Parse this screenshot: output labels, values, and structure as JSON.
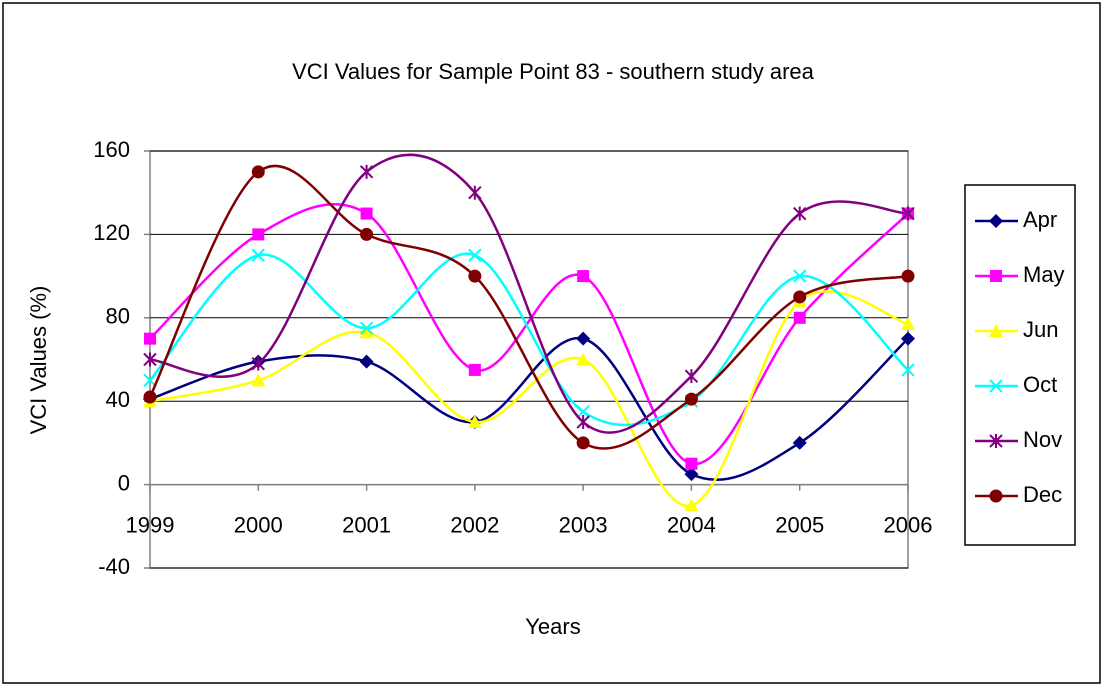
{
  "chart_data": {
    "type": "line",
    "title": "VCI Values for Sample Point 83 - southern study area",
    "x_label": "Years",
    "y_label": "VCI Values (%)",
    "categories": [
      "1999",
      "2000",
      "2001",
      "2002",
      "2003",
      "2004",
      "2005",
      "2006"
    ],
    "series": [
      {
        "name": "Apr",
        "color": "#000080",
        "marker": "diamond",
        "values": [
          41,
          59,
          59,
          30,
          70,
          5,
          20,
          70
        ]
      },
      {
        "name": "May",
        "color": "#ff00ff",
        "marker": "square",
        "values": [
          70,
          120,
          130,
          55,
          100,
          10,
          80,
          130
        ]
      },
      {
        "name": "Jun",
        "color": "#ffff00",
        "marker": "triangle",
        "values": [
          40,
          50,
          73,
          30,
          60,
          -10,
          88,
          77
        ]
      },
      {
        "name": "Oct",
        "color": "#00ffff",
        "marker": "x",
        "values": [
          50,
          110,
          75,
          110,
          35,
          40,
          100,
          55
        ]
      },
      {
        "name": "Nov",
        "color": "#800080",
        "marker": "star",
        "values": [
          60,
          58,
          150,
          140,
          30,
          52,
          130,
          130
        ]
      },
      {
        "name": "Dec",
        "color": "#800000",
        "marker": "circle",
        "values": [
          42,
          150,
          120,
          100,
          20,
          41,
          90,
          100
        ]
      }
    ],
    "ylim": [
      -40,
      160
    ],
    "yticks": [
      -40,
      0,
      40,
      80,
      120,
      160
    ],
    "grid": true,
    "smooth": true,
    "legend": "right"
  }
}
